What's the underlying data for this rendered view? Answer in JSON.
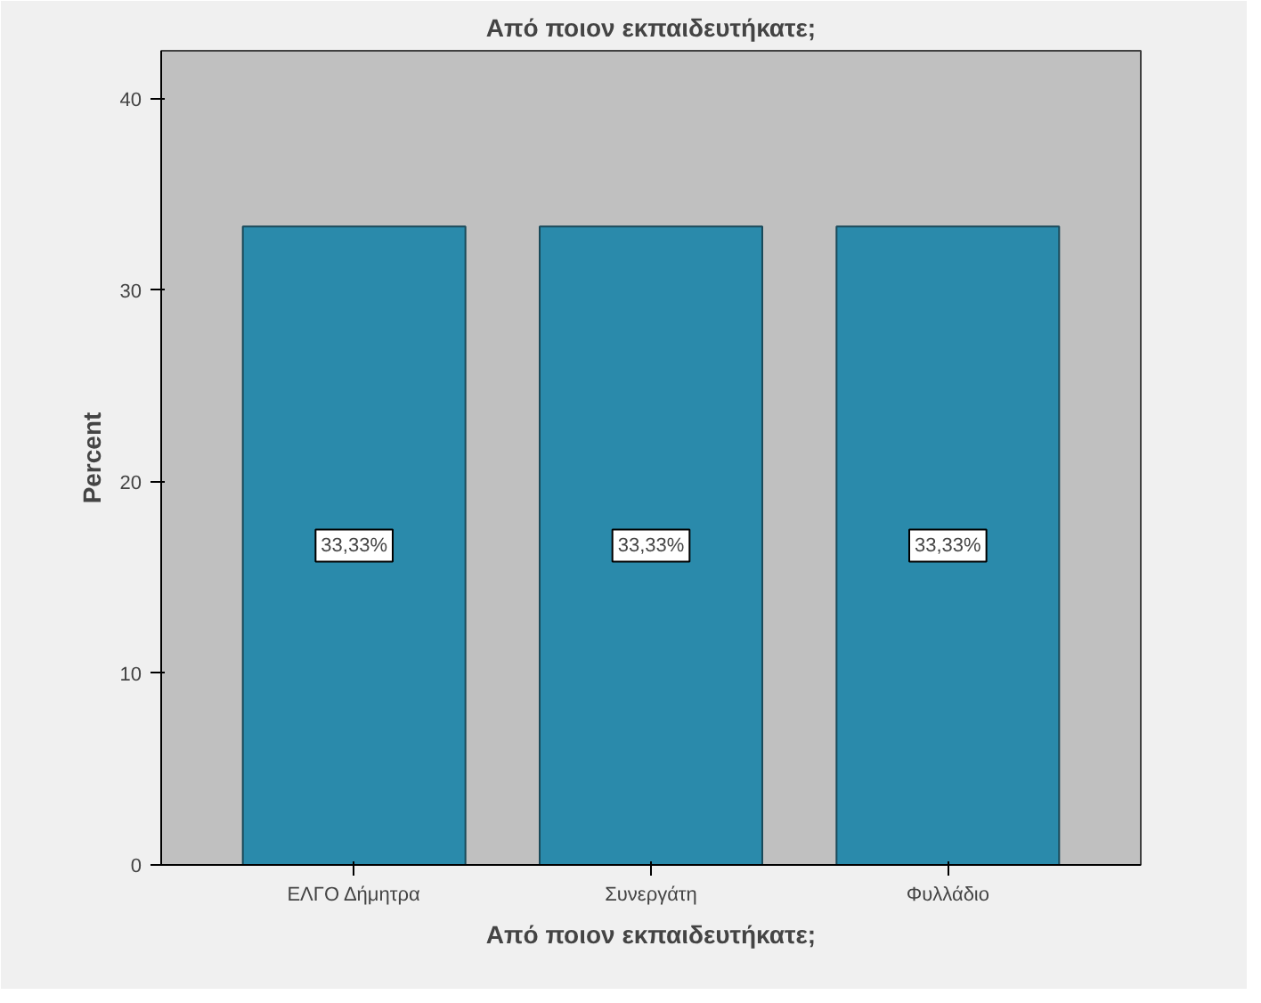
{
  "chart_data": {
    "type": "bar",
    "title": "Από ποιον εκπαιδευτήκατε;",
    "xlabel": "Από ποιον εκπαιδευτήκατε;",
    "ylabel": "Percent",
    "categories": [
      "ΕΛΓΟ Δήμητρα",
      "Συνεργάτη",
      "Φυλλάδιο"
    ],
    "values": [
      33.33,
      33.33,
      33.33
    ],
    "value_labels": [
      "33,33%",
      "33,33%",
      "33,33%"
    ],
    "color": "#2a8aab",
    "ylim": [
      0,
      42.5
    ],
    "yticks": [
      0,
      10,
      20,
      30,
      40
    ],
    "grid": false
  }
}
